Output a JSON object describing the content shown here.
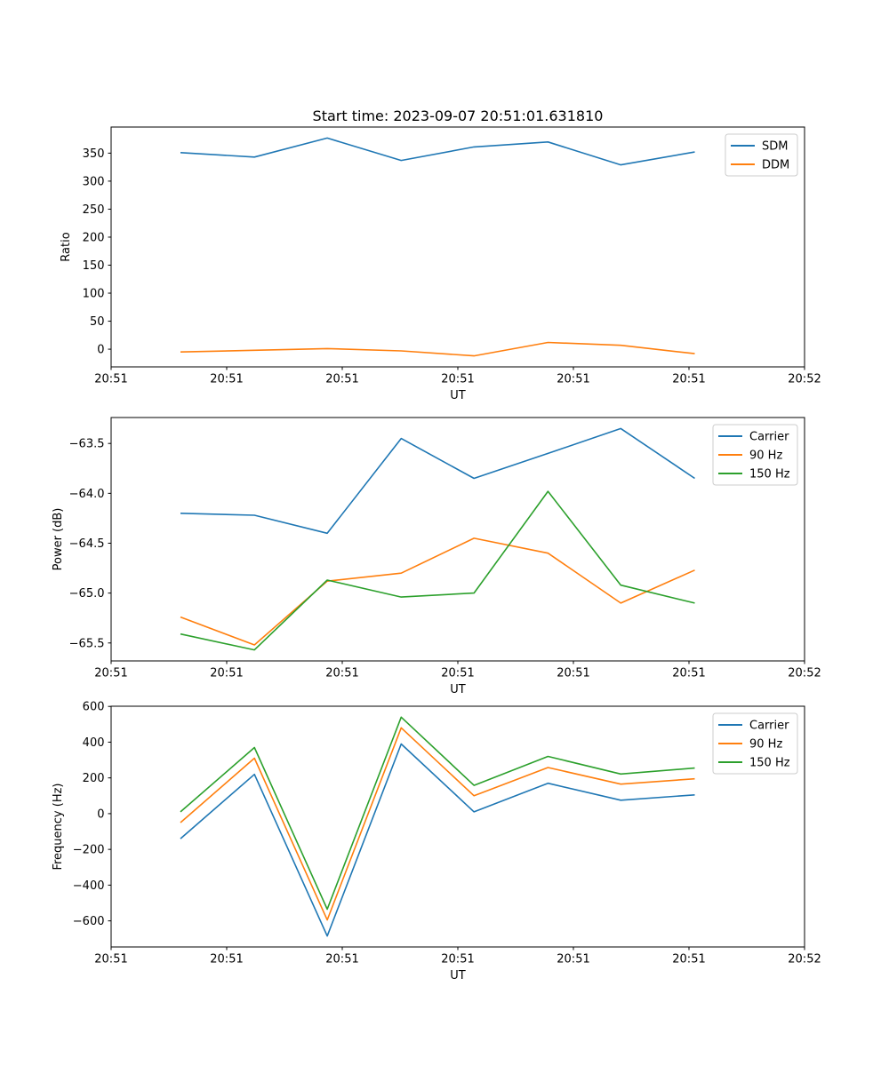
{
  "figure": {
    "title": "Start time: 2023-09-07 20:51:01.631810",
    "background_color": "#ffffff",
    "axes_border_color": "#000000",
    "text_color": "#000000",
    "legend_border_color": "#cccccc",
    "palette": {
      "blue": "#1f77b4",
      "orange": "#ff7f0e",
      "green": "#2ca02c"
    }
  },
  "chart_data": [
    {
      "type": "line",
      "title": "Start time: 2023-09-07 20:51:01.631810",
      "xlabel": "UT",
      "ylabel": "Ratio",
      "grid": false,
      "legend_position": "upper right",
      "x": [
        6,
        12.4,
        18.7,
        25.1,
        31.4,
        37.8,
        44.1,
        50.5
      ],
      "xlim": [
        0,
        60
      ],
      "xtick_positions": [
        0,
        10,
        20,
        30,
        40,
        50,
        60
      ],
      "xtick_labels": [
        "20:51",
        "20:51",
        "20:51",
        "20:51",
        "20:51",
        "20:51",
        "20:52"
      ],
      "ylim": [
        -31.6,
        396.6
      ],
      "ytick_positions": [
        0,
        50,
        100,
        150,
        200,
        250,
        300,
        350
      ],
      "ytick_labels": [
        "0",
        "50",
        "100",
        "150",
        "200",
        "250",
        "300",
        "350"
      ],
      "series": [
        {
          "name": "SDM",
          "color": "#1f77b4",
          "values": [
            351,
            343,
            377,
            337,
            361,
            370,
            329,
            352
          ]
        },
        {
          "name": "DDM",
          "color": "#ff7f0e",
          "values": [
            -5,
            -2,
            1,
            -3,
            -12,
            12,
            7,
            -8
          ]
        }
      ]
    },
    {
      "type": "line",
      "title": "",
      "xlabel": "UT",
      "ylabel": "Power (dB)",
      "grid": false,
      "legend_position": "upper right",
      "x": [
        6,
        12.4,
        18.7,
        25.1,
        31.4,
        37.8,
        44.1,
        50.5
      ],
      "xlim": [
        0,
        60
      ],
      "xtick_positions": [
        0,
        10,
        20,
        30,
        40,
        50,
        60
      ],
      "xtick_labels": [
        "20:51",
        "20:51",
        "20:51",
        "20:51",
        "20:51",
        "20:51",
        "20:52"
      ],
      "ylim": [
        -65.68,
        -63.24
      ],
      "ytick_positions": [
        -65.5,
        -65.0,
        -64.5,
        -64.0,
        -63.5
      ],
      "ytick_labels": [
        "−65.5",
        "−65.0",
        "−64.5",
        "−64.0",
        "−63.5"
      ],
      "series": [
        {
          "name": "Carrier",
          "color": "#1f77b4",
          "values": [
            -64.2,
            -64.22,
            -64.4,
            -63.45,
            -63.85,
            -63.6,
            -63.35,
            -63.85
          ]
        },
        {
          "name": "90 Hz",
          "color": "#ff7f0e",
          "values": [
            -65.24,
            -65.52,
            -64.88,
            -64.8,
            -64.45,
            -64.6,
            -65.1,
            -64.77
          ]
        },
        {
          "name": "150 Hz",
          "color": "#2ca02c",
          "values": [
            -65.41,
            -65.57,
            -64.87,
            -65.04,
            -65.0,
            -63.98,
            -64.92,
            -65.1
          ]
        }
      ]
    },
    {
      "type": "line",
      "title": "",
      "xlabel": "UT",
      "ylabel": "Frequency (Hz)",
      "grid": false,
      "legend_position": "upper right",
      "x": [
        6,
        12.4,
        18.7,
        25.1,
        31.4,
        37.8,
        44.1,
        50.5
      ],
      "xlim": [
        0,
        60
      ],
      "xtick_positions": [
        0,
        10,
        20,
        30,
        40,
        50,
        60
      ],
      "xtick_labels": [
        "20:51",
        "20:51",
        "20:51",
        "20:51",
        "20:51",
        "20:51",
        "20:52"
      ],
      "ylim": [
        -746,
        601
      ],
      "ytick_positions": [
        -600,
        -400,
        -200,
        0,
        200,
        400,
        600
      ],
      "ytick_labels": [
        "−600",
        "−400",
        "−200",
        "0",
        "200",
        "400",
        "600"
      ],
      "series": [
        {
          "name": "Carrier",
          "color": "#1f77b4",
          "values": [
            -140,
            220,
            -685,
            390,
            10,
            170,
            75,
            105
          ]
        },
        {
          "name": "90 Hz",
          "color": "#ff7f0e",
          "values": [
            -50,
            310,
            -595,
            480,
            100,
            258,
            165,
            195
          ]
        },
        {
          "name": "150 Hz",
          "color": "#2ca02c",
          "values": [
            10,
            370,
            -535,
            540,
            158,
            320,
            222,
            255
          ]
        }
      ]
    }
  ]
}
